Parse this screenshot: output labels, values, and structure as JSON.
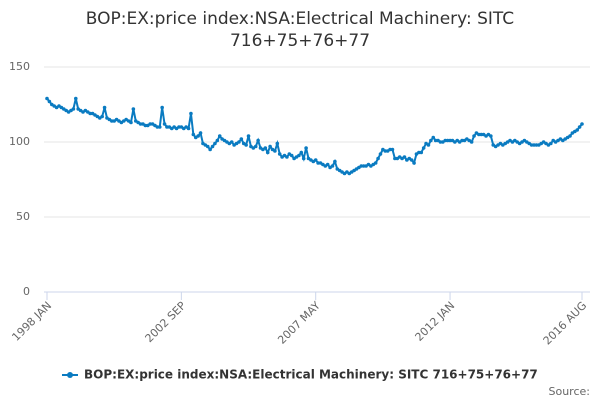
{
  "chart_data": {
    "type": "line",
    "title": "BOP:EX:price index:NSA:Electrical Machinery: SITC 716+75+76+77",
    "source": "Source:",
    "categories": [
      "1998 JAN",
      null,
      null,
      null,
      null,
      null,
      null,
      null,
      null,
      null,
      null,
      null,
      null,
      null,
      null,
      null,
      null,
      null,
      null,
      null,
      null,
      null,
      null,
      null,
      null,
      null,
      null,
      null,
      null,
      null,
      null,
      null,
      null,
      null,
      null,
      null,
      null,
      null,
      null,
      null,
      null,
      null,
      null,
      null,
      null,
      null,
      null,
      null,
      null,
      null,
      null,
      null,
      null,
      null,
      null,
      null,
      "2002 SEP",
      null,
      null,
      null,
      null,
      null,
      null,
      null,
      null,
      null,
      null,
      null,
      null,
      null,
      null,
      null,
      null,
      null,
      null,
      null,
      null,
      null,
      null,
      null,
      null,
      null,
      null,
      null,
      null,
      null,
      null,
      null,
      null,
      null,
      null,
      null,
      null,
      null,
      null,
      null,
      null,
      null,
      null,
      null,
      null,
      null,
      null,
      null,
      null,
      null,
      null,
      null,
      null,
      null,
      null,
      null,
      "2007 MAY",
      null,
      null,
      null,
      null,
      null,
      null,
      null,
      null,
      null,
      null,
      null,
      null,
      null,
      null,
      null,
      null,
      null,
      null,
      null,
      null,
      null,
      null,
      null,
      null,
      null,
      null,
      null,
      null,
      null,
      null,
      null,
      null,
      null,
      null,
      null,
      null,
      null,
      null,
      null,
      null,
      null,
      null,
      null,
      null,
      null,
      null,
      null,
      null,
      null,
      null,
      null,
      null,
      null,
      null,
      null,
      "2012 JAN",
      null,
      null,
      null,
      null,
      null,
      null,
      null,
      null,
      null,
      null,
      null,
      null,
      null,
      null,
      null,
      null,
      null,
      null,
      null,
      null,
      null,
      null,
      null,
      null,
      null,
      null,
      null,
      null,
      null,
      null,
      null,
      null,
      null,
      null,
      null,
      null,
      null,
      null,
      null,
      null,
      null,
      null,
      null,
      null,
      null,
      null,
      null,
      null,
      null,
      null,
      null,
      null,
      null,
      null,
      "2016 AUG"
    ],
    "series": [
      {
        "name": "BOP:EX:price index:NSA:Electrical Machinery: SITC 716+75+76+77",
        "color": "#0a7bc1",
        "values": [
          129,
          127,
          125,
          124,
          123,
          124,
          123,
          122,
          121,
          120,
          121,
          122,
          129,
          122,
          121,
          120,
          121,
          120,
          119,
          119,
          118,
          117,
          116,
          117,
          123,
          116,
          115,
          114,
          114,
          115,
          114,
          113,
          114,
          115,
          114,
          113,
          122,
          114,
          113,
          112,
          112,
          111,
          111,
          112,
          112,
          111,
          110,
          110,
          123,
          112,
          110,
          110,
          109,
          110,
          109,
          110,
          110,
          109,
          110,
          109,
          119,
          105,
          103,
          104,
          106,
          99,
          98,
          97,
          95,
          97,
          99,
          101,
          104,
          102,
          101,
          100,
          99,
          100,
          98,
          99,
          100,
          102,
          99,
          98,
          104,
          97,
          96,
          97,
          101,
          96,
          95,
          96,
          93,
          97,
          95,
          94,
          99,
          92,
          90,
          91,
          90,
          92,
          91,
          89,
          90,
          91,
          93,
          89,
          96,
          89,
          88,
          87,
          88,
          86,
          86,
          85,
          84,
          85,
          83,
          84,
          87,
          82,
          81,
          80,
          79,
          80,
          79,
          80,
          81,
          82,
          83,
          84,
          84,
          84,
          85,
          84,
          85,
          86,
          89,
          92,
          95,
          94,
          94,
          95,
          95,
          89,
          89,
          90,
          89,
          90,
          88,
          89,
          88,
          86,
          92,
          93,
          93,
          96,
          99,
          98,
          101,
          103,
          101,
          101,
          100,
          100,
          101,
          101,
          101,
          101,
          100,
          101,
          100,
          101,
          101,
          102,
          101,
          100,
          104,
          106,
          105,
          105,
          105,
          104,
          105,
          104,
          98,
          97,
          98,
          99,
          98,
          99,
          100,
          101,
          100,
          101,
          100,
          99,
          100,
          101,
          100,
          99,
          98,
          98,
          98,
          98,
          99,
          100,
          99,
          98,
          99,
          101,
          100,
          101,
          102,
          101,
          102,
          103,
          104,
          106,
          107,
          108,
          110,
          112
        ]
      }
    ],
    "ylim": [
      0,
      150
    ],
    "yticks": [
      0,
      50,
      100,
      150
    ],
    "grid": true
  }
}
